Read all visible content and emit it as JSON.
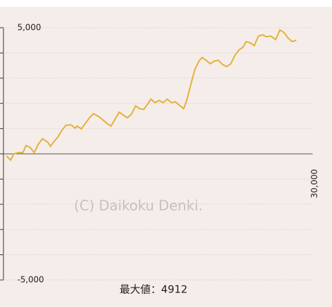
{
  "chart_data": {
    "type": "line",
    "watermark": "(C) Daikoku Denki.",
    "footer": "最大値：4912",
    "xlim": [
      0,
      30000
    ],
    "xticks": [
      {
        "value": 30000,
        "label": "30,000"
      }
    ],
    "ylim": [
      -5000,
      5000
    ],
    "yticks": [
      {
        "value": -5000,
        "label": "-5,000"
      },
      {
        "value": 5000,
        "label": "5,000"
      }
    ],
    "minor_yticks": [
      -4000,
      -3000,
      -2000,
      -1000,
      0,
      1000,
      2000,
      3000,
      4000
    ],
    "grid": true,
    "series": [
      {
        "color": "#e3b13a",
        "x": [
          100,
          500,
          800,
          1300,
          1700,
          2000,
          2400,
          2800,
          3200,
          3600,
          4100,
          4400,
          4700,
          5100,
          5500,
          5900,
          6400,
          6800,
          7000,
          7400,
          7800,
          8200,
          8600,
          9100,
          9500,
          9900,
          10300,
          10700,
          11100,
          11500,
          11900,
          12300,
          12700,
          13100,
          13500,
          13900,
          14200,
          14600,
          15000,
          15400,
          15800,
          16200,
          16600,
          17000,
          17400,
          17700,
          18100,
          18500,
          18900,
          19200,
          19600,
          20000,
          20400,
          20800,
          21200,
          21600,
          22000,
          22400,
          22800,
          23200,
          23500,
          23900,
          24300,
          24700,
          25100,
          25500,
          25900,
          26400,
          26800,
          27200,
          27600,
          28000,
          28400
        ],
        "values": [
          -80,
          -250,
          0,
          50,
          50,
          330,
          250,
          50,
          380,
          600,
          470,
          300,
          470,
          660,
          930,
          1130,
          1150,
          1020,
          1100,
          990,
          1210,
          1430,
          1590,
          1480,
          1350,
          1210,
          1100,
          1370,
          1650,
          1540,
          1430,
          1570,
          1900,
          1790,
          1760,
          1980,
          2170,
          2030,
          2120,
          2030,
          2170,
          2030,
          2060,
          1920,
          1790,
          2120,
          2750,
          3350,
          3680,
          3820,
          3710,
          3570,
          3680,
          3710,
          3540,
          3460,
          3570,
          3900,
          4120,
          4230,
          4450,
          4400,
          4290,
          4670,
          4720,
          4640,
          4670,
          4530,
          4912,
          4810,
          4590,
          4450,
          4500
        ]
      }
    ]
  }
}
